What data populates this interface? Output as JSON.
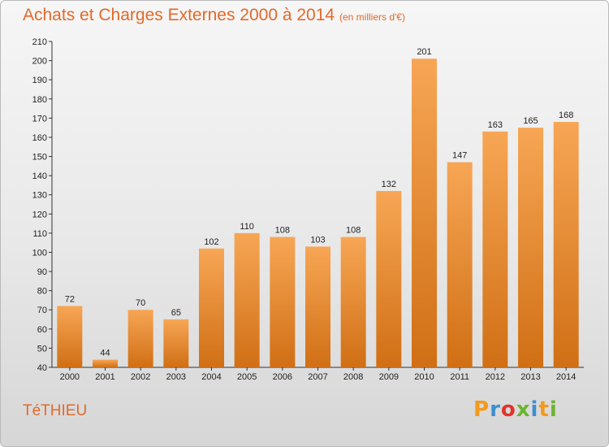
{
  "header": {
    "title": "Achats et Charges Externes 2000 à 2014",
    "unit": "(en milliers d'€)"
  },
  "footer": {
    "commune": "TéTHIEU",
    "brand": "Proxiti",
    "brand_colors": [
      "#f39a1e",
      "#3c8fd0",
      "#e2332b",
      "#6bb52f",
      "#3c8fd0",
      "#f39a1e",
      "#6bb52f"
    ]
  },
  "colors": {
    "bar_top": "#f7a655",
    "bar_bottom": "#d06f15",
    "title": "#e26a2a"
  },
  "chart_data": {
    "type": "bar",
    "categories": [
      "2000",
      "2001",
      "2002",
      "2003",
      "2004",
      "2005",
      "2006",
      "2007",
      "2008",
      "2009",
      "2010",
      "2011",
      "2012",
      "2013",
      "2014"
    ],
    "values": [
      72,
      44,
      70,
      65,
      102,
      110,
      108,
      103,
      108,
      132,
      201,
      147,
      163,
      165,
      168
    ],
    "title": "Achats et Charges Externes 2000 à 2014",
    "xlabel": "",
    "ylabel": "",
    "ylim": [
      40,
      210
    ],
    "ytick_step": 10,
    "grid": false,
    "legend": "none"
  }
}
